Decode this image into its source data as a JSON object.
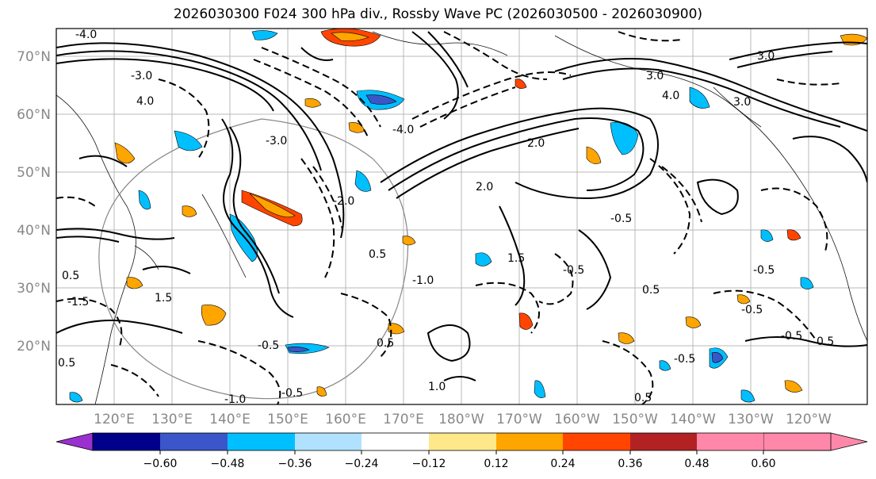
{
  "title": "2026030300 F024 300 hPa div., Rossby Wave PC (2026030500 - 2026030900)",
  "latitude_labels": [
    "70°N",
    "60°N",
    "50°N",
    "40°N",
    "30°N",
    "20°N"
  ],
  "longitude_labels": [
    "120°E",
    "130°E",
    "140°E",
    "150°E",
    "160°E",
    "170°E",
    "180°W",
    "170°W",
    "160°W",
    "150°W",
    "140°W",
    "130°W",
    "120°W"
  ],
  "colorbar": {
    "ticks": [
      "−0.60",
      "−0.48",
      "−0.36",
      "−0.24",
      "−0.12",
      "0.12",
      "0.24",
      "0.36",
      "0.48",
      "0.60"
    ],
    "colors": [
      "#9b30d0",
      "#00008b",
      "#3a56c8",
      "#00bfff",
      "#b0e2ff",
      "#ffffff",
      "#ffe88a",
      "#ffa500",
      "#ff4500",
      "#b22222",
      "#ff88aa"
    ],
    "extend": "both"
  },
  "contour_labels": [
    "-4.0",
    "-3.0",
    "-3.0",
    "4.0",
    "3.0",
    "3.0",
    "3.0",
    "4.0",
    "-4.0",
    "2.0",
    "2.0",
    "-2.0",
    "0.5",
    "-0.5",
    "-0.5",
    "0.5",
    "-1.0",
    "1.0",
    "-1.5",
    "1.5",
    "0.5",
    "-0.5",
    "0.5",
    "-0.5",
    "-0.5",
    "0.5",
    "-1.0",
    "0.5",
    "-0.5",
    "-0.5",
    "0.5",
    "1.5",
    "-0.5"
  ]
}
